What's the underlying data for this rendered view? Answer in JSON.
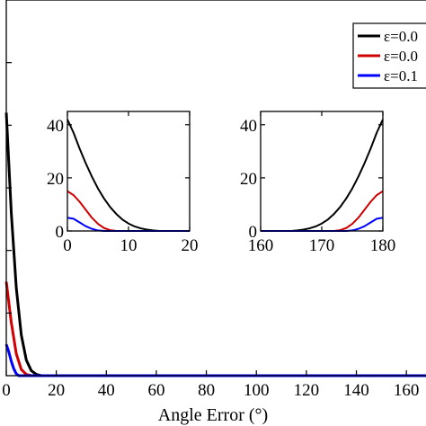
{
  "chart_data": [
    {
      "id": "main",
      "type": "line",
      "xlabel": "Angle Error (°)",
      "ylabel": "",
      "xlim": [
        0,
        170
      ],
      "ylim": [
        0,
        60
      ],
      "xticks": [
        0,
        20,
        40,
        60,
        80,
        100,
        120,
        140,
        160
      ],
      "xtick_labels": [
        "0",
        "20",
        "40",
        "60",
        "80",
        "100",
        "120",
        "140",
        "160"
      ],
      "grid": false,
      "legend_position": "top-right",
      "series": [
        {
          "name": "ε=0.0",
          "color": "#000000",
          "x": [
            0,
            2,
            4,
            6,
            8,
            10,
            12,
            14,
            16,
            170
          ],
          "y": [
            42,
            26,
            14,
            6.5,
            2.5,
            0.8,
            0.2,
            0,
            0,
            0
          ]
        },
        {
          "name": "ε=0.0",
          "color": "#d00000",
          "x": [
            0,
            2,
            4,
            6,
            8,
            10,
            170
          ],
          "y": [
            15,
            8.5,
            3.5,
            1,
            0.2,
            0,
            0
          ]
        },
        {
          "name": "ε=0.1",
          "color": "#0000ff",
          "x": [
            0,
            1,
            2,
            3,
            4,
            5,
            170
          ],
          "y": [
            5,
            3.8,
            2.3,
            1.1,
            0.3,
            0,
            0
          ]
        }
      ]
    },
    {
      "id": "inset-left",
      "type": "line",
      "xlim": [
        0,
        20
      ],
      "ylim": [
        0,
        45
      ],
      "xticks": [
        0,
        10,
        20
      ],
      "xtick_labels": [
        "0",
        "10",
        "20"
      ],
      "yticks": [
        0,
        20,
        40
      ],
      "ytick_labels": [
        "0",
        "20",
        "40"
      ],
      "grid": false,
      "series": [
        {
          "color": "#000000",
          "x": [
            0,
            1,
            2,
            3,
            4,
            5,
            6,
            7,
            8,
            9,
            10,
            11,
            12,
            13,
            14,
            15,
            20
          ],
          "y": [
            42,
            37,
            31,
            25.5,
            20.5,
            16,
            12.2,
            9,
            6.4,
            4.3,
            2.8,
            1.7,
            1,
            0.5,
            0.2,
            0,
            0
          ]
        },
        {
          "color": "#d00000",
          "x": [
            0,
            1,
            2,
            3,
            4,
            5,
            6,
            7,
            8,
            20
          ],
          "y": [
            15,
            13.5,
            11,
            8,
            5,
            2.7,
            1.1,
            0.3,
            0,
            0
          ]
        },
        {
          "color": "#0000ff",
          "x": [
            0,
            1,
            2,
            3,
            4,
            5,
            6,
            20
          ],
          "y": [
            5,
            4.6,
            3.2,
            1.8,
            0.8,
            0.2,
            0,
            0
          ]
        }
      ]
    },
    {
      "id": "inset-right",
      "type": "line",
      "xlim": [
        160,
        180
      ],
      "ylim": [
        0,
        45
      ],
      "xticks": [
        160,
        170,
        180
      ],
      "xtick_labels": [
        "160",
        "170",
        "180"
      ],
      "yticks": [
        0,
        20,
        40
      ],
      "ytick_labels": [
        "0",
        "20",
        "40"
      ],
      "grid": false,
      "series": [
        {
          "color": "#000000",
          "x": [
            160,
            165,
            166,
            167,
            168,
            169,
            170,
            171,
            172,
            173,
            174,
            175,
            176,
            177,
            178,
            179,
            180
          ],
          "y": [
            0,
            0,
            0.2,
            0.5,
            1,
            1.7,
            2.8,
            4.3,
            6.4,
            9,
            12.2,
            16,
            20.5,
            25.5,
            31,
            37,
            42
          ]
        },
        {
          "color": "#d00000",
          "x": [
            160,
            172,
            173,
            174,
            175,
            176,
            177,
            178,
            179,
            180
          ],
          "y": [
            0,
            0,
            0.3,
            1.1,
            2.7,
            5,
            8,
            11,
            13.5,
            15
          ]
        },
        {
          "color": "#0000ff",
          "x": [
            160,
            174,
            175,
            176,
            177,
            178,
            179,
            180
          ],
          "y": [
            0,
            0,
            0.2,
            0.8,
            1.8,
            3.2,
            4.6,
            5
          ]
        }
      ]
    }
  ]
}
